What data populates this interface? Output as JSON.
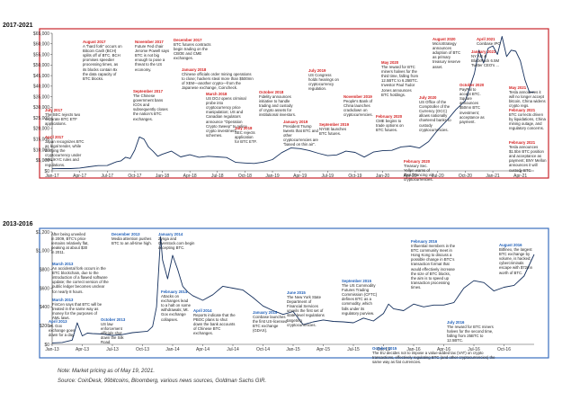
{
  "chart_data": [
    {
      "type": "line",
      "title": "2017-2021",
      "border_color": "#c8252c",
      "ylim": [
        0,
        65000
      ],
      "yticks": [
        "$0",
        "$5,000",
        "$10,000",
        "$15,000",
        "$20,000",
        "$25,000",
        "$30,000",
        "$35,000",
        "$40,000",
        "$45,000",
        "$50,000",
        "$55,000",
        "$60,000",
        "$65,000"
      ],
      "xticks": [
        "Jan-17",
        "Apr-17",
        "Jul-17",
        "Oct-17",
        "Jan-18",
        "Apr-18",
        "Jul-18",
        "Oct-18",
        "Jan-19",
        "Apr-19",
        "Jul-19",
        "Oct-19",
        "Jan-20",
        "Apr-20",
        "Jul-20",
        "Oct-20",
        "Jan-21",
        "Apr-21"
      ],
      "x": [
        0,
        1,
        2,
        3,
        4,
        5,
        6,
        7,
        7.5,
        8,
        8.5,
        9,
        9.5,
        10,
        10.5,
        11,
        11.5,
        12,
        13,
        14,
        15,
        16,
        17,
        18,
        19,
        20,
        21,
        22,
        23,
        24,
        25,
        26,
        27,
        28,
        29,
        30,
        31,
        32,
        33,
        34,
        35,
        36,
        37,
        38,
        39,
        40,
        41,
        42,
        43,
        44,
        45,
        46,
        46.5,
        47,
        47.5,
        48,
        48.5,
        49,
        49.5,
        50,
        50.5,
        51,
        51.5,
        52,
        52.5
      ],
      "values": [
        970,
        1100,
        1080,
        1300,
        1900,
        2450,
        2500,
        4300,
        4700,
        6400,
        5800,
        9800,
        16000,
        15000,
        11200,
        9200,
        6900,
        7800,
        9300,
        6600,
        7600,
        6400,
        6900,
        6600,
        6300,
        4000,
        3700,
        3500,
        4100,
        5300,
        8600,
        10800,
        10500,
        9600,
        8300,
        7200,
        7500,
        9300,
        8700,
        6500,
        8900,
        9500,
        9700,
        11300,
        11700,
        10800,
        13800,
        19300,
        23800,
        29000,
        33100,
        46000,
        57000,
        51000,
        58000,
        59000,
        55000,
        63500,
        54000,
        57000,
        56500,
        52000,
        43000,
        37000,
        37300
      ],
      "annotations": [
        {
          "date": "August 2017",
          "text": "A \"hard fork\" occurs on Bitcoin Cash (BCH) splits off of BTC. BCH promises speedier processing times, as its blocks contain 8x the data capacity of BTC blocks."
        },
        {
          "date": "July 2017",
          "text": "The SEC rejects two separate BTC ETF applications."
        },
        {
          "date": "April 2017",
          "text": "Japan recognizes BTC as legal tender, while bringing the cryptocurrency under AML/KYC rules and regulations."
        },
        {
          "date": "November 2017",
          "text": "Future Fed chair Jerome Powell says BTC is not big enough to pose a threat to the US economy."
        },
        {
          "date": "September 2017",
          "text": "The Chinese government bans ICOs and subsequently closes the nation's BTC exchanges."
        },
        {
          "date": "December 2017",
          "text": "BTC futures contracts begin trading on the CBOE and CME exchanges."
        },
        {
          "date": "January 2018",
          "text": "Chinese officials order mining operations to close; hackers steal more than $500mn of XEM—another crypto—from the Japanese exchange, Coincheck."
        },
        {
          "date": "March 2018",
          "text": "US DOJ opens criminal probe into cryptocurrency price manipulation; US and Canadian regulators announce \"Operation Crypto Sweep\" to police crypto investment schemes."
        },
        {
          "date": "July 2018",
          "text": "SEC rejects application for BTC ETF."
        },
        {
          "date": "October 2018",
          "text": "Fidelity announces initiative to handle trading and custody of crypto assets for institutional investors."
        },
        {
          "date": "January 2019",
          "text": "President Trump tweets that BTC and other cryptocurrencies are \"based on thin air\"."
        },
        {
          "date": "July 2019",
          "text": "US Congress holds hearings on cryptocurrency regulation."
        },
        {
          "date": "September 2019",
          "text": "NYSE launches BTC futures."
        },
        {
          "date": "November 2019",
          "text": "People's Bank of China launches crackdown on cryptocurrencies."
        },
        {
          "date": "February 2020",
          "text": "CME begins to trade options on BTC futures."
        },
        {
          "date": "May 2020",
          "text": "The reward for BTC miners halves for the third time, falling from 12.5BTC to 6.25BTC. Investor Paul Tudor Jones announces BTC holdings."
        },
        {
          "date": "July 2020",
          "text": "US Office of the Comptroller of the Currency (OCC) allows nationally chartered banks to custody cryptocurrencies."
        },
        {
          "date": "August 2020",
          "text": "MicroStrategy announces adoption of BTC as primary treasury reserve asset."
        },
        {
          "date": "October 2020",
          "text": "PayPal to accept BTC. Square announces $50mn BTC investment; acceptance as payment."
        },
        {
          "date": "February 2020",
          "text": "Treasury Sec. Yellen warns of illicit financing via cryptocurrencies."
        },
        {
          "date": "January 2021",
          "text": "NY AG & BlackRock 6.5M Twitter CEO's ..."
        },
        {
          "date": "April 2021",
          "text": "Coinbase IPO"
        },
        {
          "date": "May 2021",
          "text": "Tesla announces it will no longer accept bitcoin, China widens crypto regs."
        },
        {
          "date": "February 2021",
          "text": "BTC corrects driven by liquidations, China mining outage, and regulatory concerns."
        },
        {
          "date": "February 2021",
          "text": "Tesla announces $1.5bn BTC position and acceptance as payment; BNY Mellon announces it will custody BTC"
        }
      ]
    },
    {
      "type": "line",
      "title": "2013-2016",
      "border_color": "#3a6fbf",
      "ylim": [
        0,
        1200
      ],
      "yticks": [
        "$0",
        "$200",
        "$400",
        "$600",
        "$800",
        "$1,000",
        "$1,200"
      ],
      "xticks": [
        "Jan-13",
        "Apr-13",
        "Jul-13",
        "Oct-13",
        "Jan-14",
        "Apr-14",
        "Jul-14",
        "Oct-14",
        "Jan-15",
        "Apr-15",
        "Jul-15",
        "Oct-15",
        "Jan-16",
        "Apr-16",
        "Jul-16",
        "Oct-16"
      ],
      "x": [
        0,
        1,
        2,
        2.5,
        3,
        3.5,
        4,
        5,
        6,
        7,
        8,
        9,
        9.5,
        10,
        10.4,
        10.8,
        11,
        11.5,
        12,
        12.5,
        13,
        13.5,
        14,
        15,
        16,
        17,
        18,
        19,
        20,
        21,
        22,
        23,
        24,
        25,
        26,
        27,
        28,
        29,
        30,
        31,
        32,
        33,
        33.5,
        34,
        35,
        36,
        37,
        38,
        39,
        40,
        41,
        42,
        43,
        44,
        45,
        46,
        47,
        48
      ],
      "values": [
        15,
        20,
        45,
        230,
        90,
        120,
        115,
        110,
        95,
        105,
        125,
        135,
        140,
        190,
        400,
        1150,
        900,
        700,
        950,
        800,
        620,
        560,
        520,
        470,
        530,
        620,
        600,
        580,
        500,
        410,
        360,
        320,
        350,
        210,
        240,
        260,
        245,
        240,
        230,
        280,
        250,
        330,
        430,
        380,
        360,
        430,
        400,
        420,
        420,
        445,
        600,
        680,
        660,
        570,
        610,
        630,
        730,
        960
      ]
    }
  ],
  "text": {
    "top_title": "2017-2021",
    "bottom_title": "2013-2016",
    "note": "Note: Market pricing as of May 19, 2021.",
    "source": "Source: CoinDesk, 99bitcoins, Bloomberg, various news sources, Goldman Sachs GIR."
  },
  "annotations_top": [
    {
      "date": "August 2017",
      "text": "A \"hard fork\" occurs on Bitcoin Cash (BCH) splits off of BTC. BCH promises speedier processing times, as its blocks contain 8x the data capacity of BTC blocks."
    },
    {
      "date": "July 2017",
      "text": "The SEC rejects two separate BTC ETF applications."
    },
    {
      "date": "April 2017",
      "text": "Japan recognizes BTC as legal tender, while bringing the cryptocurrency under AML/KYC rules and regulations."
    },
    {
      "date": "November 2017",
      "text": "Future Fed chair Jerome Powell says BTC is not big enough to pose a threat to the US economy."
    },
    {
      "date": "September 2017",
      "text": "The Chinese government bans ICOs and subsequently closes the nation's BTC exchanges."
    },
    {
      "date": "December 2017",
      "text": "BTC futures contracts begin trading on the CBOE and CME exchanges."
    },
    {
      "date": "January 2018",
      "text": "Chinese officials order mining operations to close; hackers steal more than $500mn of XEM—another crypto—from the Japanese exchange, Coincheck."
    },
    {
      "date": "March 2018",
      "text": "US DOJ opens criminal probe into cryptocurrency price manipulation; US and Canadian regulators announce \"Operation Crypto Sweep\" to police crypto investment schemes."
    },
    {
      "date": "July 2018",
      "text": "SEC rejects application for BTC ETF."
    },
    {
      "date": "October 2018",
      "text": "Fidelity announces initiative to handle trading and custody of crypto assets for institutional investors."
    },
    {
      "date": "January 2019",
      "text": "President Trump tweets that BTC and other cryptocurrencies are \"based on thin air\"."
    },
    {
      "date": "July 2019",
      "text": "US Congress holds hearings on cryptocurrency regulation."
    },
    {
      "date": "September 2019",
      "text": "NYSE launches BTC futures."
    },
    {
      "date": "November 2019",
      "text": "People's Bank of China launches crackdown on cryptocurrencies."
    },
    {
      "date": "February 2020",
      "text": "CME begins to trade options on BTC futures."
    },
    {
      "date": "May 2020",
      "text": "The reward for BTC miners halves for the third time, falling from 12.5BTC to 6.25BTC. Investor Paul Tudor Jones announces BTC holdings."
    },
    {
      "date": "July 2020",
      "text": "US Office of the Comptroller of the Currency (OCC) allows nationally chartered banks to custody cryptocurrencies."
    },
    {
      "date": "August 2020",
      "text": "MicroStrategy announces adoption of BTC as primary treasury reserve asset."
    },
    {
      "date": "October 2020",
      "text": "PayPal to accept BTC. Square announces $50mn BTC investment; acceptance as payment."
    },
    {
      "date": "February 2020",
      "text": "Treasury Sec. Yellen warns of illicit financing via cryptocurrencies."
    },
    {
      "date": "January 2021",
      "text": "NY AG & BlackRock 6.5M Twitter CEO's ..."
    },
    {
      "date": "April 2021",
      "text": "Coinbase IPO"
    },
    {
      "date": "May 2021",
      "text": "Tesla announces it will no longer accept bitcoin, China widens crypto regs."
    },
    {
      "date": "February 2021",
      "text": "BTC corrects driven by liquidations, China mining outage, and regulatory concerns."
    },
    {
      "date": "February 2021",
      "text": "Tesla announces $1.5bn BTC position and acceptance as payment; BNY Mellon announces it will custody BTC"
    }
  ],
  "annotations_bottom": [
    {
      "date": "",
      "text": "After being unveiled in 2009, BTC's price remains relatively flat, peaking at about $30 in 2011."
    },
    {
      "date": "March 2013",
      "text": "An accidental fork occurs in the BTC blockchain, due to the introduction of a flawed software update; the correct version of the public ledger becomes unclear for nearly 8 hours."
    },
    {
      "date": "March 2013",
      "text": "FinCen says that BTC will be treated in the same way as money for the purposes of AML laws."
    },
    {
      "date": "April 2013",
      "text": "Mt. Gox exchange goes down for a day."
    },
    {
      "date": "December 2013",
      "text": "Media attention pushes BTC to an all-time high."
    },
    {
      "date": "October 2013",
      "text": "US law enforcement officials shut down the Silk Road."
    },
    {
      "date": "February 2014",
      "text": "Attacks on exchanges lead to a halt on some withdrawals; Mt. Gox exchange collapses."
    },
    {
      "date": "January 2014",
      "text": "Zynga and Overstock.com begin accepting BTC."
    },
    {
      "date": "April 2014",
      "text": "Reports indicate that the PBOC plans to shut down the bank accounts of Chinese BTC exchanges."
    },
    {
      "date": "January 2015",
      "text": "Coinbase launches the first US-licensed BTC exchange (GDAX)."
    },
    {
      "date": "June 2015",
      "text": "The New York State Department of Financial Services unveils the first set of state-level regulations targeting cryptocurrencies."
    },
    {
      "date": "September 2015",
      "text": "The US Commodity Futures Trading Commission (CFTC) defines BTC as a commodity, which falls under its regulatory purview."
    },
    {
      "date": "October 2015",
      "text": "The EU decides not to impose a value-added tax (VAT) on crypto transactions, effectively regulating BTC (and other cryptocurrencies) the same way as fiat currencies."
    },
    {
      "date": "February 2016",
      "text": "Influential members in the BTC community meet in Hong Kong to discuss a possible change in BTC's transaction format that would effectively increase the size of BTC blocks, the aim is to speed up transaction processing times."
    },
    {
      "date": "July 2016",
      "text": "The reward for BTC miners halves for the second time, falling from 25BTC to 12.5BTC."
    },
    {
      "date": "August 2016",
      "text": "Bitfinex, the largest BTC exchange by volume, is hacked; cybercriminals escape with $72mn worth of BTC."
    }
  ]
}
